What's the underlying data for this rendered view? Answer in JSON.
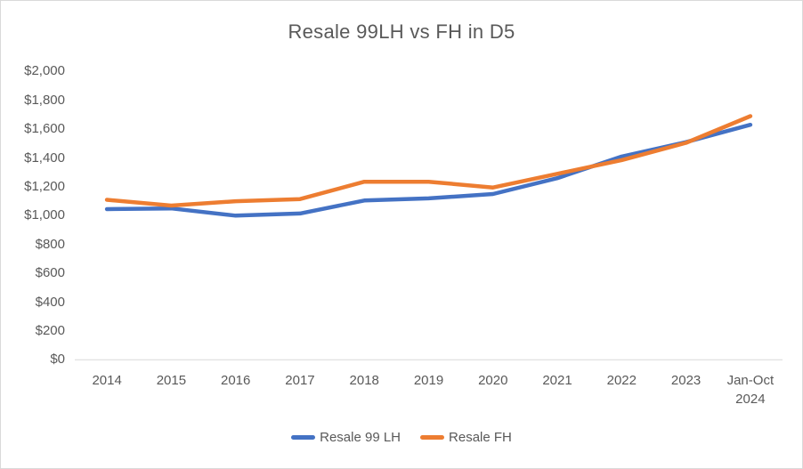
{
  "frame": {
    "background": "#FFFFFF",
    "border_color": "#D9D9D9"
  },
  "chart_data": {
    "type": "line",
    "title": "Resale 99LH vs FH in D5",
    "categories": [
      "2014",
      "2015",
      "2016",
      "2017",
      "2018",
      "2019",
      "2020",
      "2021",
      "2022",
      "2023",
      "Jan-Oct 2024"
    ],
    "series": [
      {
        "name": "Resale 99 LH",
        "color": "#4472C4",
        "values": [
          1045,
          1050,
          1000,
          1015,
          1105,
          1120,
          1150,
          1260,
          1410,
          1510,
          1630
        ]
      },
      {
        "name": "Resale FH",
        "color": "#ED7D31",
        "values": [
          1110,
          1070,
          1100,
          1115,
          1235,
          1235,
          1195,
          1290,
          1385,
          1505,
          1690
        ]
      }
    ],
    "y_axis": {
      "min": 0,
      "max": 2000,
      "step": 200,
      "tick_labels": [
        "$0",
        "$200",
        "$400",
        "$600",
        "$800",
        "$1,000",
        "$1,200",
        "$1,400",
        "$1,600",
        "$1,800",
        "$2,000"
      ]
    },
    "x_axis": {
      "tick_labels_visible": true
    },
    "legend": {
      "position": "bottom"
    },
    "grid": false,
    "styles": {
      "axis_line_color": "#D9D9D9",
      "text_color": "#595959",
      "line_width": 4.5
    }
  }
}
